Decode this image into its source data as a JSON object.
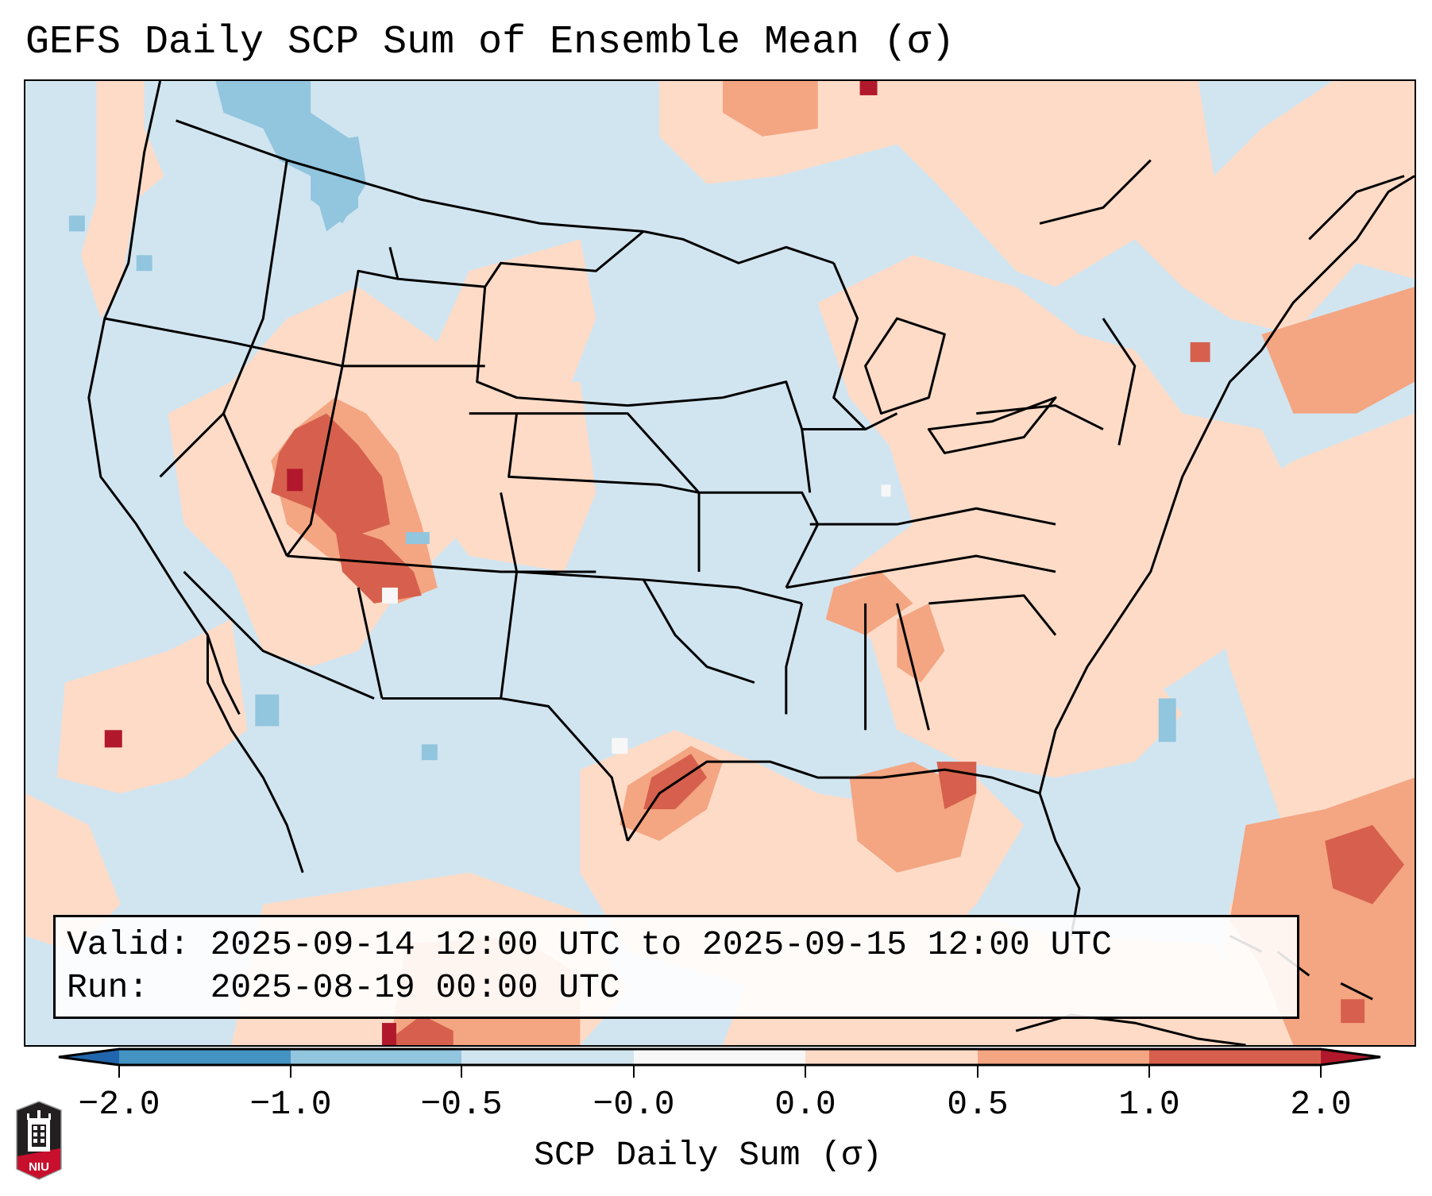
{
  "title": "GEFS Daily SCP Sum of Ensemble Mean (σ)",
  "info_box": {
    "valid_line": "Valid: 2025-09-14 12:00 UTC to 2025-09-15 12:00 UTC",
    "run_line": "Run:   2025-08-19 00:00 UTC"
  },
  "colorbar": {
    "label": "SCP Daily Sum (σ)",
    "ticks": [
      "−2.0",
      "−1.0",
      "−0.5",
      "−0.0",
      "0.0",
      "0.5",
      "1.0",
      "2.0"
    ],
    "bins": [
      {
        "range": "< -2.0",
        "color": "#2166ac"
      },
      {
        "range": "-2.0 to -1.0",
        "color": "#4393c3"
      },
      {
        "range": "-1.0 to -0.5",
        "color": "#92c5de"
      },
      {
        "range": "-0.5 to -0.0",
        "color": "#d1e5f0"
      },
      {
        "range": "-0.0 to 0.0",
        "color": "#f7f7f7"
      },
      {
        "range": "0.0 to 0.5",
        "color": "#fddbc7"
      },
      {
        "range": "0.5 to 1.0",
        "color": "#f4a582"
      },
      {
        "range": "1.0 to 2.0",
        "color": "#d6604d"
      },
      {
        "range": "> 2.0",
        "color": "#b2182b"
      }
    ],
    "extend": "both"
  },
  "map": {
    "domain": "CONUS",
    "field": "SCP daily sum anomaly",
    "units": "σ",
    "highlights": [
      {
        "region": "Southwest (Utah / Arizona)",
        "category": "1.0 to 2.0"
      },
      {
        "region": "Texas Gulf Coast",
        "category": "1.0 to 2.0"
      },
      {
        "region": "Louisiana / Mississippi coast",
        "category": "1.0 to 2.0"
      },
      {
        "region": "Caribbean / Bahamas",
        "category": "1.0 to 2.0"
      },
      {
        "region": "Pacific Northwest interior",
        "category": "-1.0 to -0.5"
      }
    ]
  },
  "logo": {
    "text": "NIU"
  }
}
